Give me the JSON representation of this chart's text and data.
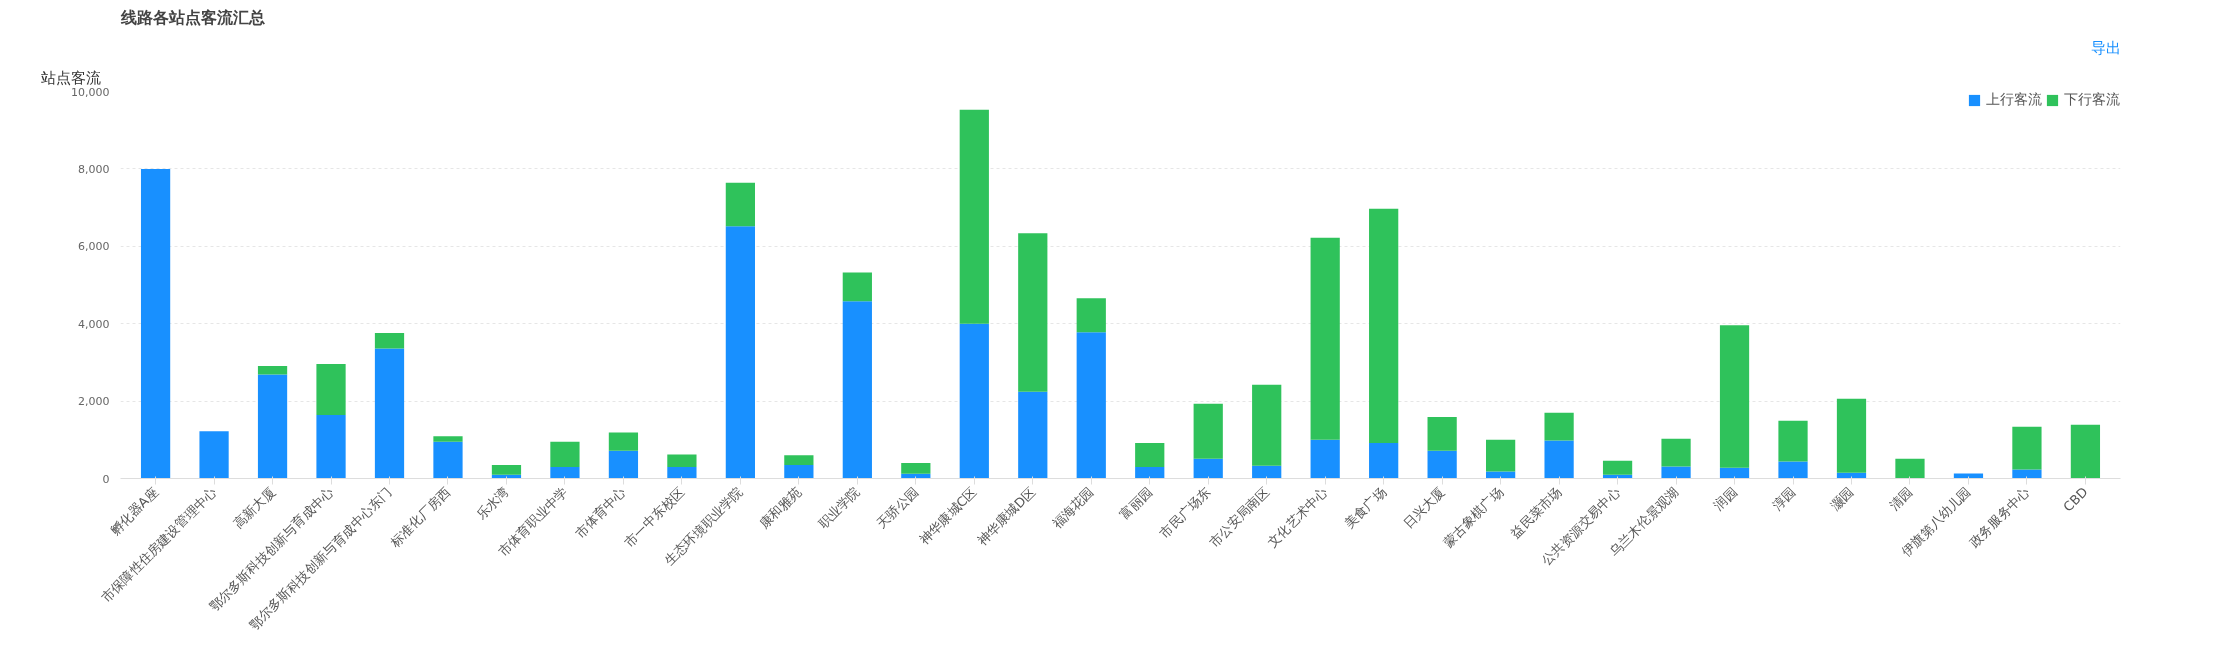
{
  "chart_data": {
    "type": "bar",
    "title": "线路各站点客流汇总",
    "ylabel": "站点客流",
    "annotations": [
      "导出"
    ],
    "categories": [
      "孵化器A座",
      "市保障性住房建设管理中心",
      "高新大厦",
      "鄂尔多斯科技创新与育成中心",
      "鄂尔多斯科技创新与育成中心东门",
      "标准化厂房西",
      "乐水湾",
      "市体育职业中学",
      "市体育中心",
      "市一中东校区",
      "生态环境职业学院",
      "康和雅苑",
      "职业学院",
      "天骄公园",
      "神华康城C区",
      "神华康城D区",
      "福海花园",
      "富丽园",
      "市民广场东",
      "市公安局南区",
      "文化艺术中心",
      "美食广场",
      "日兴大厦",
      "蒙古象棋广场",
      "益民菜市场",
      "公共资源交易中心",
      "乌兰木伦景观湖",
      "润园",
      "淳园",
      "灏园",
      "清园",
      "伊旗第八幼儿园",
      "政务服务中心",
      "CBD"
    ],
    "stacked": true,
    "series": [
      {
        "name": "上行客流",
        "color": "#1890ff",
        "values": [
          8000,
          1220,
          2690,
          1640,
          3360,
          950,
          100,
          300,
          720,
          300,
          6520,
          350,
          4580,
          120,
          4000,
          2240,
          3780,
          300,
          510,
          330,
          1000,
          920,
          720,
          180,
          980,
          100,
          310,
          280,
          440,
          150,
          0,
          130,
          230,
          0
        ]
      },
      {
        "name": "下行客流",
        "color": "#2fc25b",
        "values": [
          0,
          0,
          220,
          1320,
          400,
          140,
          250,
          650,
          470,
          320,
          1120,
          250,
          740,
          280,
          5530,
          4100,
          880,
          620,
          1420,
          2090,
          5220,
          6050,
          870,
          820,
          720,
          360,
          720,
          3680,
          1050,
          1910,
          510,
          0,
          1110,
          1390
        ]
      }
    ],
    "ylim": [
      0,
      10000
    ],
    "yticks": [
      0,
      {
        "value": 2000,
        "label": "2,000"
      },
      {
        "value": 4000,
        "label": "4,000"
      },
      {
        "value": 6000,
        "label": "6,000"
      },
      {
        "value": 8000,
        "label": "8,000"
      },
      {
        "value": 10000,
        "label": "10,000"
      }
    ],
    "grid": "y",
    "legend": "top right"
  }
}
